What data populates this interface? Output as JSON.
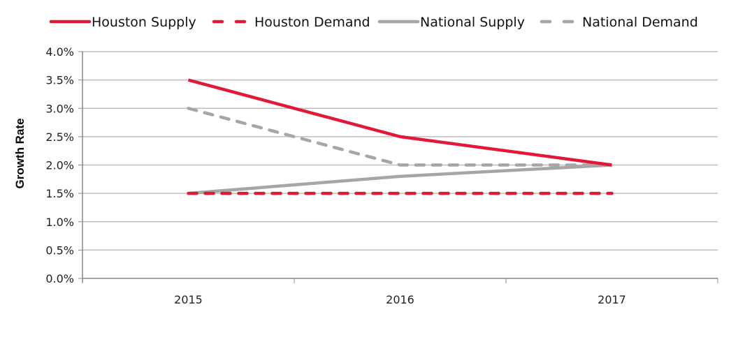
{
  "chart_data": {
    "type": "line",
    "categories": [
      "2015",
      "2016",
      "2017"
    ],
    "series": [
      {
        "name": "Houston Supply",
        "values": [
          3.5,
          2.5,
          2.0
        ],
        "color": "#e31837",
        "dashed": false
      },
      {
        "name": "Houston Demand",
        "values": [
          1.5,
          1.5,
          1.5
        ],
        "color": "#e31837",
        "dashed": true
      },
      {
        "name": "National Supply",
        "values": [
          1.5,
          1.8,
          2.0
        ],
        "color": "#a6a6a6",
        "dashed": false
      },
      {
        "name": "National Demand",
        "values": [
          3.0,
          2.0,
          2.0
        ],
        "color": "#a6a6a6",
        "dashed": true
      }
    ],
    "xlabel": "",
    "ylabel": "Growth Rate",
    "ylim": [
      0,
      4.0
    ],
    "yticks": [
      "0.0%",
      "0.5%",
      "1.0%",
      "1.5%",
      "2.0%",
      "2.5%",
      "3.0%",
      "3.5%",
      "4.0%"
    ],
    "grid": true,
    "legend": "top"
  }
}
